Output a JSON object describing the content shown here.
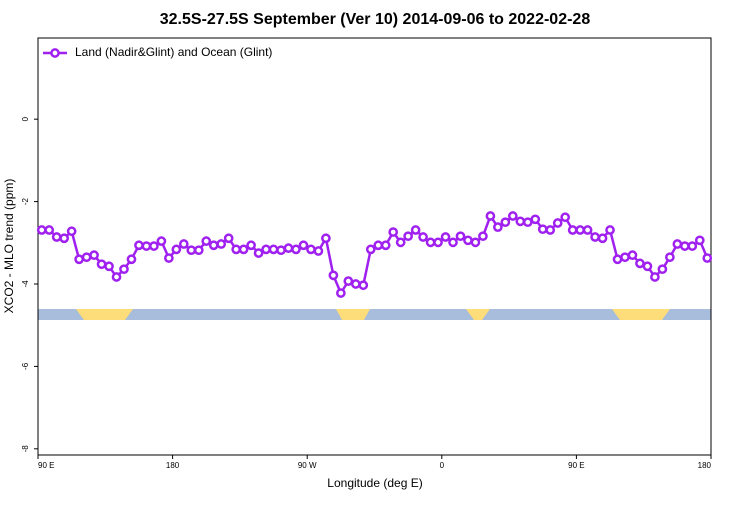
{
  "chart_data": {
    "type": "line",
    "title": "32.5S-27.5S September (Ver 10)   2014-09-06 to 2022-02-28",
    "x_label": "Longitude (deg E)",
    "y_label": "XCO2 - MLO trend (ppm)",
    "xlim": [
      90,
      540
    ],
    "xticks": [
      {
        "value": 90,
        "label": "90 E"
      },
      180,
      {
        "value": 270,
        "label": "90 W"
      },
      {
        "value": 360,
        "label": "0"
      },
      {
        "value": 450,
        "label": "90 E"
      },
      {
        "value": 540,
        "label": "180"
      }
    ],
    "ylim": [
      -8.15,
      1.97
    ],
    "yticks": [
      -8,
      -6,
      -4,
      -2,
      0
    ],
    "legend": "top-left",
    "x": [
      92.5,
      97.5,
      102.5,
      107.5,
      112.5,
      117.5,
      122.5,
      127.5,
      132.5,
      137.5,
      142.5,
      147.5,
      152.5,
      157.5,
      162.5,
      167.5,
      172.5,
      177.5,
      182.5,
      187.5,
      192.5,
      197.5,
      202.5,
      207.5,
      212.5,
      217.5,
      222.5,
      227.5,
      232.5,
      237.5,
      242.5,
      247.5,
      252.5,
      257.5,
      262.5,
      267.5,
      272.5,
      277.5,
      282.5,
      287.5,
      292.5,
      297.5,
      302.5,
      307.5,
      312.5,
      317.5,
      322.5,
      327.5,
      332.5,
      337.5,
      342.5,
      347.5,
      352.5,
      357.5,
      362.5,
      367.5,
      372.5,
      377.5,
      382.5,
      387.5,
      392.5,
      397.5,
      402.5,
      407.5,
      412.5,
      417.5,
      422.5,
      427.5,
      432.5,
      437.5,
      442.5,
      447.5,
      452.5,
      457.5,
      462.5,
      467.5,
      472.5,
      477.5,
      482.5,
      487.5,
      492.5,
      497.5,
      502.5,
      507.5,
      512.5,
      517.5,
      522.5,
      527.5,
      532.5,
      537.5
    ],
    "series": [
      {
        "name": "Land (Nadir&Glint) and Ocean (Glint)",
        "color": "#a020f0",
        "values": [
          -2.69,
          -2.69,
          -2.86,
          -2.89,
          -2.72,
          -3.4,
          -3.35,
          -3.3,
          -3.52,
          -3.57,
          -3.83,
          -3.64,
          -3.4,
          -3.06,
          -3.08,
          -3.08,
          -2.96,
          -3.37,
          -3.16,
          -3.03,
          -3.18,
          -3.18,
          -2.96,
          -3.06,
          -3.03,
          -2.89,
          -3.16,
          -3.16,
          -3.06,
          -3.25,
          -3.16,
          -3.16,
          -3.18,
          -3.13,
          -3.16,
          -3.06,
          -3.16,
          -3.2,
          -2.89,
          -3.79,
          -4.22,
          -3.93,
          -4.0,
          -4.03,
          -3.16,
          -3.06,
          -3.06,
          -2.74,
          -2.99,
          -2.84,
          -2.69,
          -2.86,
          -2.99,
          -2.99,
          -2.86,
          -2.99,
          -2.84,
          -2.94,
          -2.99,
          -2.84,
          -2.35,
          -2.62,
          -2.5,
          -2.35,
          -2.48,
          -2.5,
          -2.43,
          -2.67,
          -2.69,
          -2.52,
          -2.38,
          -2.69,
          -2.69,
          -2.69,
          -2.86,
          -2.89,
          -2.69,
          -3.4,
          -3.35,
          -3.3,
          -3.5,
          -3.57,
          -3.83,
          -3.64,
          -3.35,
          -3.03,
          -3.08,
          -3.08,
          -2.94,
          -3.37
        ]
      }
    ]
  }
}
